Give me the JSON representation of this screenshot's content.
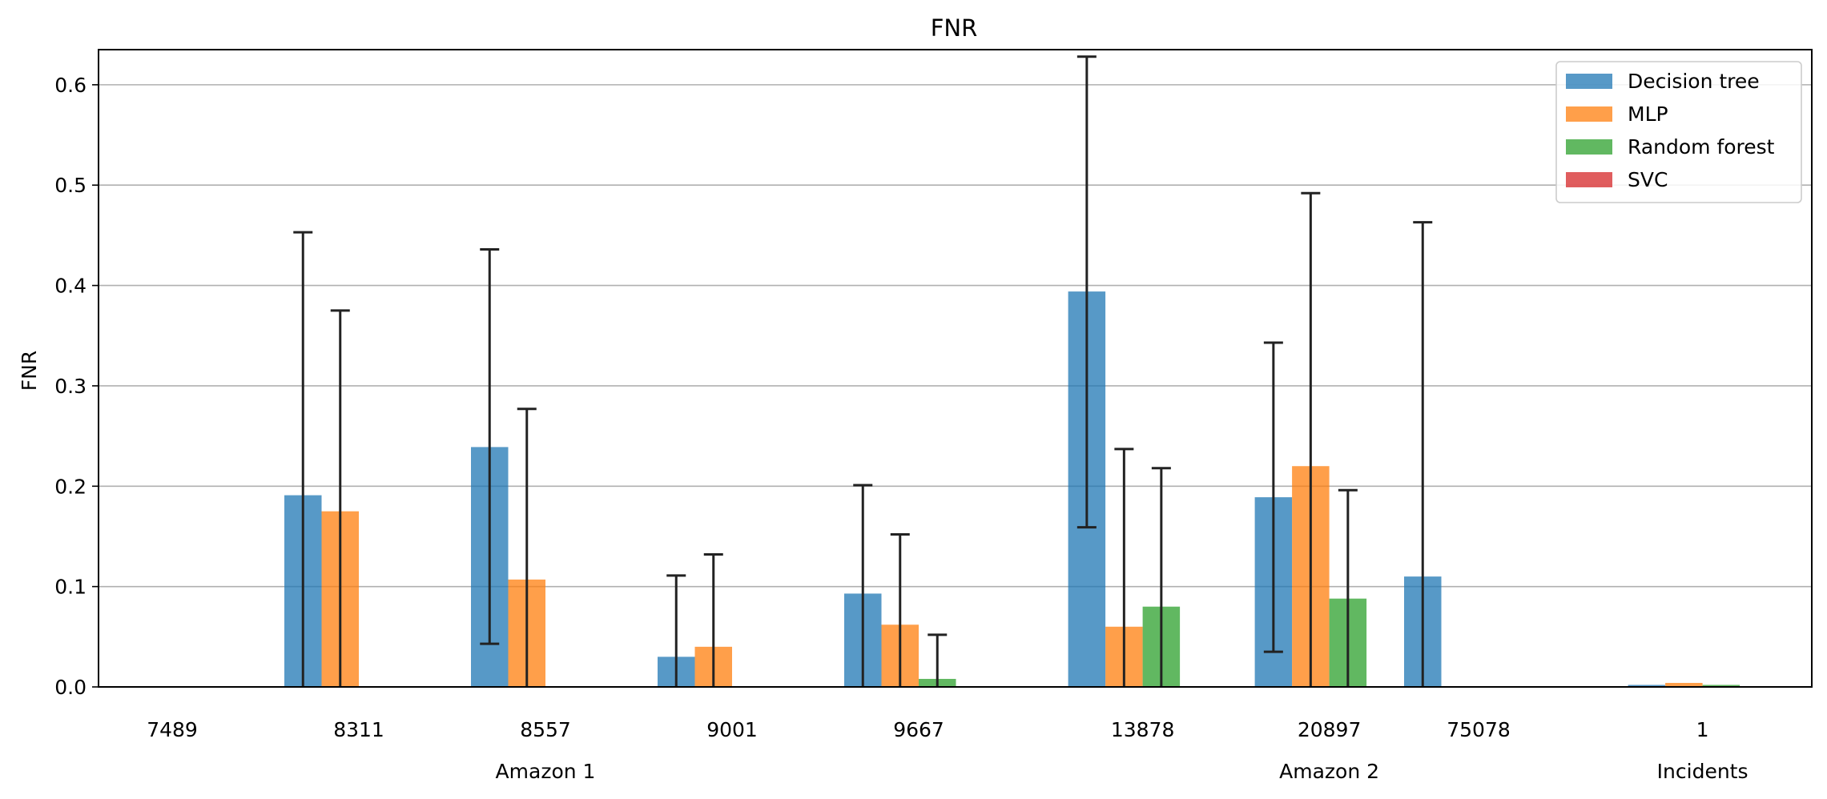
{
  "chart_data": {
    "type": "bar",
    "title": "FNR",
    "ylabel": "FNR",
    "xlabel": "",
    "ylim": [
      0,
      0.635
    ],
    "yticks": [
      0.0,
      0.1,
      0.2,
      0.3,
      0.4,
      0.5,
      0.6
    ],
    "ytick_labels": [
      "0.0",
      "0.1",
      "0.2",
      "0.3",
      "0.4",
      "0.5",
      "0.6"
    ],
    "grid": "horizontal",
    "legend_position": "top-right",
    "categories": [
      "7489",
      "8311",
      "8557",
      "9001",
      "9667",
      "13878",
      "20897",
      "75078",
      "1"
    ],
    "category_slots": [
      0,
      1,
      2,
      3,
      4,
      5.2,
      6.2,
      7,
      8.2
    ],
    "group_labels": [
      {
        "label": "Amazon 1",
        "slot": 2
      },
      {
        "label": "Amazon 2",
        "slot": 6.2
      },
      {
        "label": "Incidents",
        "slot": 8.2
      }
    ],
    "series": [
      {
        "name": "Decision tree",
        "color": "#1f77b4",
        "values": [
          0,
          0.191,
          0.239,
          0.03,
          0.093,
          0.394,
          0.189,
          0.11,
          0.002
        ],
        "err_low": [
          null,
          0,
          0.043,
          0,
          0,
          0.159,
          0.035,
          0,
          null
        ],
        "err_high": [
          null,
          0.453,
          0.436,
          0.111,
          0.201,
          0.628,
          0.343,
          0.463,
          null
        ]
      },
      {
        "name": "MLP",
        "color": "#ff7f0e",
        "values": [
          0,
          0.175,
          0.107,
          0.04,
          0.062,
          0.06,
          0.22,
          0,
          0.004
        ],
        "err_low": [
          null,
          0,
          0,
          0,
          0,
          0,
          0,
          null,
          null
        ],
        "err_high": [
          null,
          0.375,
          0.277,
          0.132,
          0.152,
          0.237,
          0.492,
          null,
          null
        ]
      },
      {
        "name": "Random forest",
        "color": "#2ca02c",
        "values": [
          0,
          0,
          0,
          0,
          0.008,
          0.08,
          0.088,
          0,
          0.002
        ],
        "err_low": [
          null,
          null,
          null,
          null,
          0,
          0,
          0,
          null,
          null
        ],
        "err_high": [
          null,
          null,
          null,
          null,
          0.052,
          0.218,
          0.196,
          null,
          null
        ]
      },
      {
        "name": "SVC",
        "color": "#d62728",
        "values": [
          0,
          0,
          0,
          0,
          0,
          0,
          0,
          0,
          0
        ],
        "err_low": [
          null,
          null,
          null,
          null,
          null,
          null,
          null,
          null,
          null
        ],
        "err_high": [
          null,
          null,
          null,
          null,
          null,
          null,
          null,
          null,
          null
        ]
      }
    ]
  }
}
